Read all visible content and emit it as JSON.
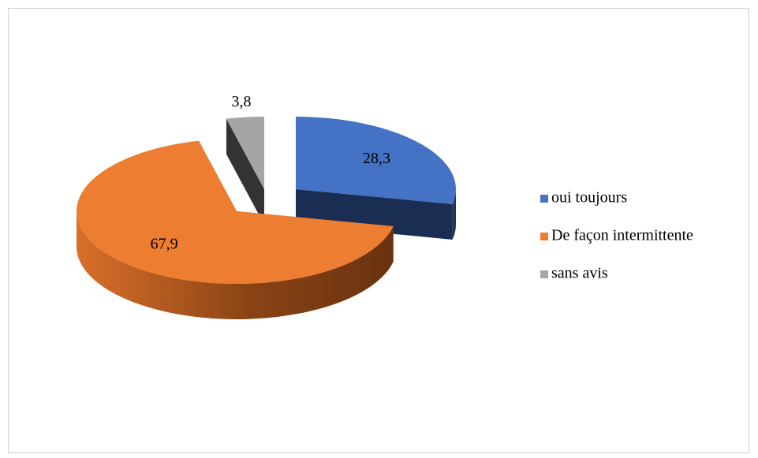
{
  "chart_data": {
    "type": "pie",
    "categories": [
      "oui toujours",
      "De façon intermittente",
      "sans avis"
    ],
    "values": [
      28.3,
      67.9,
      3.8
    ],
    "value_labels": [
      "28,3",
      "67,9",
      "3,8"
    ],
    "colors": [
      "#4472c4",
      "#ed7d31",
      "#a5a5a5"
    ],
    "legend": "right"
  }
}
